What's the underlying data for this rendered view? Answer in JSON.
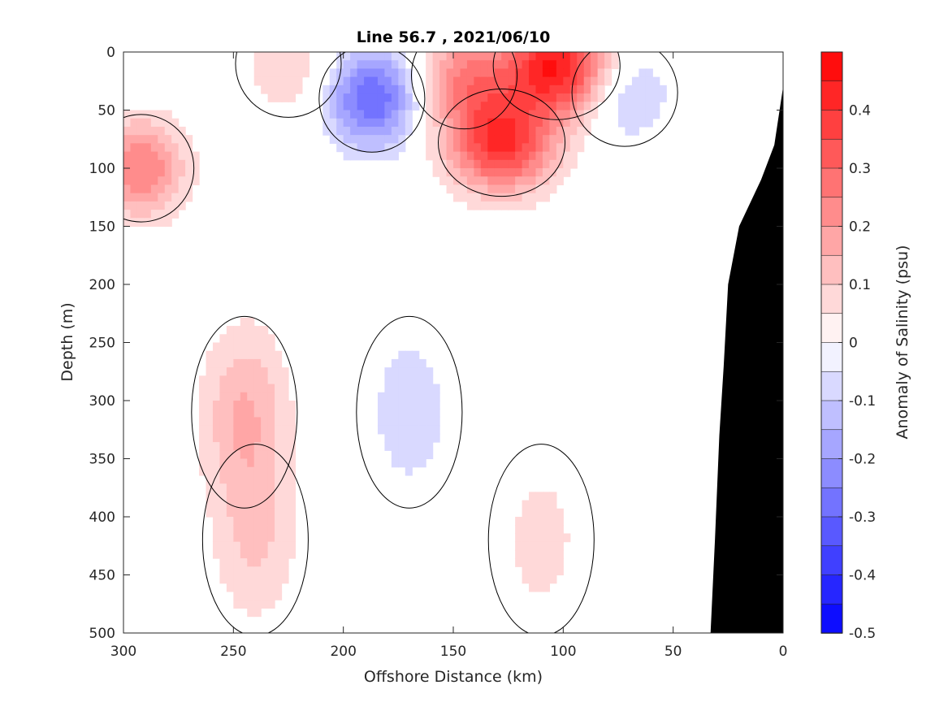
{
  "chart_data": {
    "type": "heatmap",
    "title": "Line 56.7 , 2021/06/10",
    "xlabel": "Offshore Distance (km)",
    "ylabel": "Depth (m)",
    "xlim": [
      300,
      0
    ],
    "ylim": [
      0,
      500
    ],
    "x_reversed": true,
    "y_reversed": true,
    "xticks": [
      "300",
      "250",
      "200",
      "150",
      "100",
      "50",
      "0"
    ],
    "xtick_values": [
      300,
      250,
      200,
      150,
      100,
      50,
      0
    ],
    "yticks": [
      "0",
      "50",
      "100",
      "150",
      "200",
      "250",
      "300",
      "350",
      "400",
      "450",
      "500"
    ],
    "ytick_values": [
      0,
      50,
      100,
      150,
      200,
      250,
      300,
      350,
      400,
      450,
      500
    ],
    "grid": false,
    "colorbar": {
      "label": "Anomaly of Salinity (psu)",
      "range": [
        -0.5,
        0.5
      ],
      "step": 0.05,
      "tick_labels": [
        "0.4",
        "0.3",
        "0.2",
        "0.1",
        "0",
        "-0.1",
        "-0.2",
        "-0.3",
        "-0.4",
        "-0.5"
      ],
      "tick_values": [
        0.4,
        0.3,
        0.2,
        0.1,
        0,
        -0.1,
        -0.2,
        -0.3,
        -0.4,
        -0.5
      ],
      "low_color": "#0000ff",
      "mid_color": "#ffffff",
      "high_color": "#ff0000"
    },
    "anomaly_features": [
      {
        "name": "surface high core",
        "x_km": 103,
        "depth_m": 12,
        "value": 0.45
      },
      {
        "name": "subsurface high core",
        "x_km": 128,
        "depth_m": 78,
        "value": 0.4
      },
      {
        "name": "high near 145 km",
        "x_km": 145,
        "depth_m": 20,
        "value": 0.22
      },
      {
        "name": "low core",
        "x_km": 187,
        "depth_m": 40,
        "value": -0.3
      },
      {
        "name": "low near 72 km",
        "x_km": 72,
        "depth_m": 35,
        "value": -0.12
      },
      {
        "name": "high west edge",
        "x_km": 292,
        "depth_m": 100,
        "value": 0.25
      },
      {
        "name": "high near 225 km",
        "x_km": 225,
        "depth_m": 10,
        "value": 0.1
      },
      {
        "name": "deep high 240 km",
        "x_km": 245,
        "depth_m": 310,
        "value": 0.15
      },
      {
        "name": "deep high 240 km lower",
        "x_km": 240,
        "depth_m": 420,
        "value": 0.1
      },
      {
        "name": "mid-depth low",
        "x_km": 170,
        "depth_m": 310,
        "value": -0.08
      },
      {
        "name": "deep high 110 km",
        "x_km": 110,
        "depth_m": 420,
        "value": 0.07
      }
    ],
    "bathymetry": [
      {
        "x": 33,
        "depth": 500
      },
      {
        "x": 31,
        "depth": 420
      },
      {
        "x": 29,
        "depth": 330
      },
      {
        "x": 27,
        "depth": 270
      },
      {
        "x": 25,
        "depth": 200
      },
      {
        "x": 20,
        "depth": 150
      },
      {
        "x": 10,
        "depth": 110
      },
      {
        "x": 4,
        "depth": 80
      },
      {
        "x": 0,
        "depth": 30
      }
    ]
  }
}
